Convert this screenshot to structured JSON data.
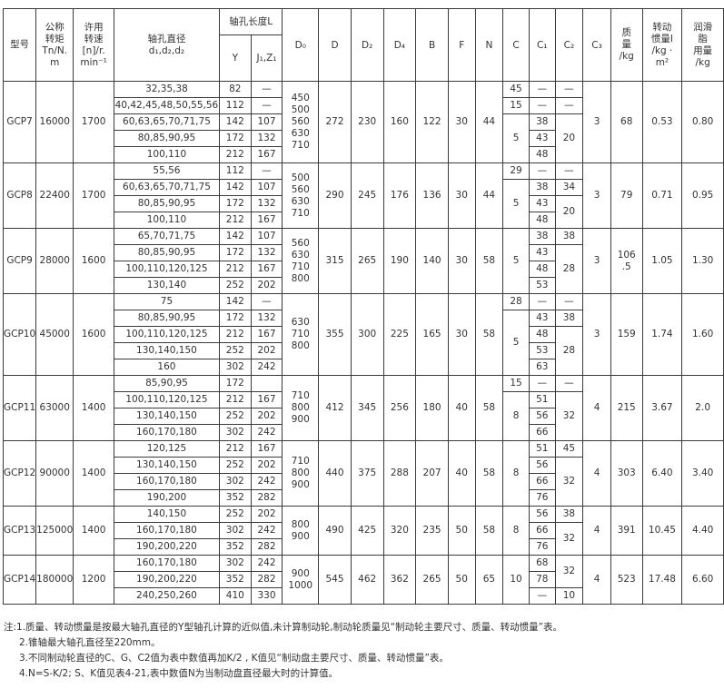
{
  "headers": {
    "model": "型号",
    "torque": "公称\n转矩\nTn/N.\nm",
    "speed": "许用\n转速\n[n]/r.\nmin⁻¹",
    "bore": "轴孔直径\nd₁,d₂,d₂",
    "length": "轴孔长度L",
    "y": "Y",
    "j": "J₁,Z₁",
    "d0": "D₀",
    "d": "D",
    "d2": "D₂",
    "d4": "D₄",
    "b": "B",
    "f": "F",
    "n": "N",
    "c": "C",
    "c1": "C₁",
    "c2": "C₂",
    "c3": "C₃",
    "mass": "质\n量\n/kg",
    "inertia": "转动\n惯量I\n/kg ·\nm²",
    "grease": "润滑\n脂\n用量\n/kg"
  },
  "groups": [
    {
      "model": "GCP7",
      "torque": "16000",
      "speed": "1700",
      "d0": "450\n500\n560\n630\n710",
      "d": "272",
      "d2": "230",
      "d4": "160",
      "b": "122",
      "f": "30",
      "n": "44",
      "c3": "3",
      "mass": "68",
      "inertia": "0.53",
      "grease": "0.80",
      "rows": [
        [
          "32,35,38",
          "82",
          "—"
        ],
        [
          "40,42,45,48,50,55,56",
          "112",
          "—"
        ],
        [
          "60,63,65,70,71,75",
          "142",
          "107"
        ],
        [
          "80,85,90,95",
          "172",
          "132"
        ],
        [
          "100,110",
          "212",
          "167"
        ]
      ],
      "c": [
        "45",
        "15",
        "5",
        null,
        null
      ],
      "c1": [
        "—",
        "—",
        "38",
        "43",
        "48"
      ],
      "c2": [
        "—",
        "—",
        "20",
        null,
        null
      ]
    },
    {
      "model": "GCP8",
      "torque": "22400",
      "speed": "1700",
      "d0": "500\n560\n630\n710",
      "d": "290",
      "d2": "245",
      "d4": "176",
      "b": "136",
      "f": "30",
      "n": "44",
      "c3": "3",
      "mass": "79",
      "inertia": "0.71",
      "grease": "0.95",
      "rows": [
        [
          "55,56",
          "112",
          "—"
        ],
        [
          "60,63,65,70,71,75",
          "142",
          "107"
        ],
        [
          "80,85,90,95",
          "172",
          "132"
        ],
        [
          "100,110",
          "212",
          "167"
        ]
      ],
      "c": [
        "29",
        "5",
        null,
        null
      ],
      "c1": [
        "—",
        "38",
        "43",
        "48"
      ],
      "c2": [
        "—",
        "34",
        "20",
        null
      ]
    },
    {
      "model": "GCP9",
      "torque": "28000",
      "speed": "1600",
      "d0": "560\n630\n710\n800",
      "d": "315",
      "d2": "265",
      "d4": "190",
      "b": "140",
      "f": "30",
      "n": "58",
      "c3": "3",
      "mass": "106\n.5",
      "inertia": "1.05",
      "grease": "1.30",
      "rows": [
        [
          "65,70,71,75",
          "142",
          "107"
        ],
        [
          "80,85,90,95",
          "172",
          "132"
        ],
        [
          "100,110,120,125",
          "212",
          "167"
        ],
        [
          "130,140",
          "252",
          "202"
        ]
      ],
      "c": [
        "5",
        null,
        null,
        null
      ],
      "c1": [
        "38",
        "43",
        "48",
        "53"
      ],
      "c2": [
        "38",
        "28",
        null,
        null
      ]
    },
    {
      "model": "GCP10",
      "torque": "45000",
      "speed": "1600",
      "d0": "630\n710\n800",
      "d": "355",
      "d2": "300",
      "d4": "225",
      "b": "165",
      "f": "30",
      "n": "58",
      "c3": "3",
      "mass": "159",
      "inertia": "1.74",
      "grease": "1.60",
      "rows": [
        [
          "75",
          "142",
          "—"
        ],
        [
          "80,85,90,95",
          "172",
          "132"
        ],
        [
          "100,110,120,125",
          "212",
          "167"
        ],
        [
          "130,140,150",
          "252",
          "202"
        ],
        [
          "160",
          "302",
          "242"
        ]
      ],
      "c": [
        "28",
        "5",
        null,
        null,
        null
      ],
      "c1": [
        "—",
        "43",
        "48",
        "53",
        "63"
      ],
      "c2": [
        "—",
        "38",
        "28",
        null,
        null
      ]
    },
    {
      "model": "GCP11",
      "torque": "63000",
      "speed": "1400",
      "d0": "710\n800\n900",
      "d": "412",
      "d2": "345",
      "d4": "256",
      "b": "180",
      "f": "40",
      "n": "58",
      "c3": "4",
      "mass": "215",
      "inertia": "3.67",
      "grease": "2.0",
      "rows": [
        [
          "85,90,95",
          "172",
          ""
        ],
        [
          "100,110,120,125",
          "212",
          "167"
        ],
        [
          "130,140,150",
          "252",
          "202"
        ],
        [
          "160,170,180",
          "302",
          "242"
        ]
      ],
      "c": [
        "15",
        "8",
        null,
        null
      ],
      "c1": [
        "—",
        "51",
        "56",
        "66"
      ],
      "c2": [
        "—",
        "32",
        null,
        null
      ]
    },
    {
      "model": "GCP12",
      "torque": "90000",
      "speed": "1400",
      "d0": "710\n800\n900",
      "d": "440",
      "d2": "375",
      "d4": "288",
      "b": "207",
      "f": "40",
      "n": "58",
      "c3": "4",
      "mass": "303",
      "inertia": "6.40",
      "grease": "3.40",
      "rows": [
        [
          "120,125",
          "212",
          "167"
        ],
        [
          "130,140,150",
          "252",
          "202"
        ],
        [
          "160,170,180",
          "302",
          "242"
        ],
        [
          "190,200",
          "352",
          "282"
        ]
      ],
      "c": [
        "8",
        null,
        null,
        null
      ],
      "c1": [
        "51",
        "56",
        "66",
        "76"
      ],
      "c2": [
        "45",
        "32",
        null,
        null
      ]
    },
    {
      "model": "GCP13",
      "torque": "125000",
      "speed": "1400",
      "d0": "800\n900",
      "d": "490",
      "d2": "425",
      "d4": "320",
      "b": "235",
      "f": "50",
      "n": "58",
      "c3": "4",
      "mass": "391",
      "inertia": "10.45",
      "grease": "4.40",
      "rows": [
        [
          "140,150",
          "252",
          "202"
        ],
        [
          "160,170,180",
          "302",
          "242"
        ],
        [
          "190,200,220",
          "352",
          "282"
        ]
      ],
      "c": [
        "8",
        null,
        null
      ],
      "c1": [
        "56",
        "66",
        "76"
      ],
      "c2": [
        "38",
        "32",
        null
      ]
    },
    {
      "model": "GCP14",
      "torque": "180000",
      "speed": "1200",
      "d0": "900\n1000",
      "d": "545",
      "d2": "462",
      "d4": "362",
      "b": "265",
      "f": "50",
      "n": "65",
      "c3": "4",
      "mass": "523",
      "inertia": "17.48",
      "grease": "6.60",
      "rows": [
        [
          "160,170,180",
          "302",
          "242"
        ],
        [
          "190,200,220",
          "352",
          "282"
        ],
        [
          "240,250,260",
          "410",
          "330"
        ]
      ],
      "c": [
        "10",
        null,
        null
      ],
      "c1": [
        "68",
        "78",
        "—"
      ],
      "c2": [
        "32",
        null,
        "10"
      ]
    }
  ],
  "notes": [
    "注:1.质量、转动惯量是按最大轴孔直径的Y型轴孔计算的近似值,未计算制动轮,制动轮质量见“制动轮主要尺寸、质量、转动惯量”表。",
    "2.锥轴最大轴孔直径至220mm。",
    "3.不同制动轮直径的C、G、C2值为表中数值再加K/2 , K值见“制动盘主要尺寸、质量、转动惯量”表。",
    "4.N=S-K/2; S、K值见表4-21,表中数值N为当制动盘直径最大时的计算值。"
  ]
}
